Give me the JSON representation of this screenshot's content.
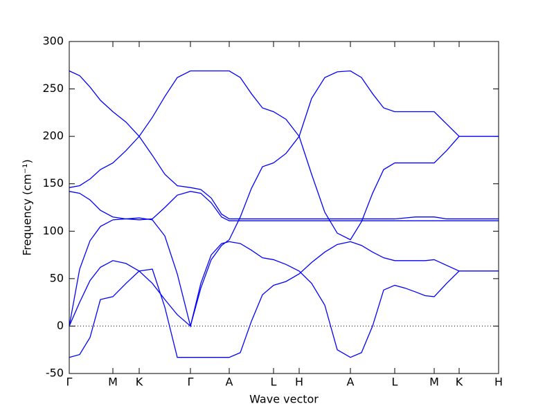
{
  "chart_data": {
    "type": "line",
    "xlabel": "Wave vector",
    "ylabel": "Frequency (cm⁻¹)",
    "x": [
      0,
      0.15,
      0.3,
      0.45,
      0.63,
      0.82,
      1.01,
      1.2,
      1.38,
      1.56,
      1.75,
      1.9,
      2.05,
      2.2,
      2.31,
      2.47,
      2.63,
      2.79,
      2.95,
      3.13,
      3.32,
      3.5,
      3.69,
      3.87,
      4.06,
      4.22,
      4.38,
      4.54,
      4.7,
      4.85,
      5.0,
      5.14,
      5.27,
      5.45,
      5.63,
      5.9,
      6.2
    ],
    "series": [
      {
        "color": "#0000ff",
        "values": [
          269,
          264,
          252,
          238,
          226,
          215,
          200,
          180,
          160,
          148,
          146,
          144,
          135,
          118,
          113,
          113,
          113,
          113,
          113,
          113,
          113,
          113,
          113,
          113,
          113,
          113,
          113,
          113,
          113,
          114,
          115,
          115,
          115,
          113,
          113,
          113,
          113
        ]
      },
      {
        "color": "#0000ff",
        "values": [
          146,
          148,
          155,
          165,
          172,
          185,
          200,
          220,
          242,
          262,
          269,
          269,
          269,
          269,
          269,
          262,
          245,
          230,
          226,
          218,
          200,
          160,
          120,
          98,
          91,
          110,
          140,
          165,
          172,
          172,
          172,
          172,
          172,
          185,
          200,
          200,
          200
        ]
      },
      {
        "color": "#0000ff",
        "values": [
          142,
          140,
          133,
          122,
          115,
          113,
          112,
          113,
          125,
          138,
          142,
          140,
          130,
          115,
          111,
          111,
          111,
          111,
          111,
          111,
          111,
          111,
          111,
          111,
          111,
          111,
          111,
          111,
          111,
          111,
          111,
          111,
          111,
          111,
          111,
          111,
          111
        ]
      },
      {
        "color": "#0000ff",
        "values": [
          0,
          60,
          90,
          105,
          112,
          113,
          114,
          112,
          95,
          55,
          0,
          40,
          70,
          85,
          91,
          115,
          145,
          168,
          172,
          182,
          200,
          240,
          262,
          268,
          269,
          262,
          245,
          230,
          226,
          226,
          226,
          226,
          226,
          213,
          200,
          200,
          200
        ]
      },
      {
        "color": "#0000ff",
        "values": [
          0,
          25,
          48,
          62,
          69,
          66,
          58,
          45,
          28,
          12,
          0,
          45,
          75,
          87,
          89,
          87,
          80,
          72,
          70,
          65,
          58,
          45,
          22,
          -25,
          -33,
          -28,
          0,
          38,
          43,
          40,
          36,
          32,
          31,
          45,
          58,
          58,
          58
        ]
      },
      {
        "color": "#0000ff",
        "values": [
          -33,
          -30,
          -12,
          28,
          31,
          45,
          58,
          60,
          20,
          -33,
          -33,
          -33,
          -33,
          -33,
          -33,
          -28,
          5,
          33,
          43,
          47,
          55,
          67,
          78,
          86,
          89,
          85,
          78,
          72,
          69,
          69,
          69,
          69,
          70,
          64,
          58,
          58,
          58
        ]
      }
    ],
    "xlim": [
      0,
      6.2
    ],
    "xticks": [
      {
        "value": 0,
        "label": "Γ"
      },
      {
        "value": 0.63,
        "label": "M"
      },
      {
        "value": 1.01,
        "label": "K"
      },
      {
        "value": 1.75,
        "label": "Γ"
      },
      {
        "value": 2.31,
        "label": "A"
      },
      {
        "value": 2.95,
        "label": "L"
      },
      {
        "value": 3.32,
        "label": "H"
      },
      {
        "value": 4.06,
        "label": "A"
      },
      {
        "value": 4.7,
        "label": "L"
      },
      {
        "value": 5.27,
        "label": "M"
      },
      {
        "value": 5.63,
        "label": "K"
      },
      {
        "value": 6.2,
        "label": "H"
      }
    ],
    "ylim": [
      -50,
      300
    ],
    "yticks": [
      -50,
      0,
      50,
      100,
      150,
      200,
      250,
      300
    ],
    "hlines": [
      0
    ]
  }
}
